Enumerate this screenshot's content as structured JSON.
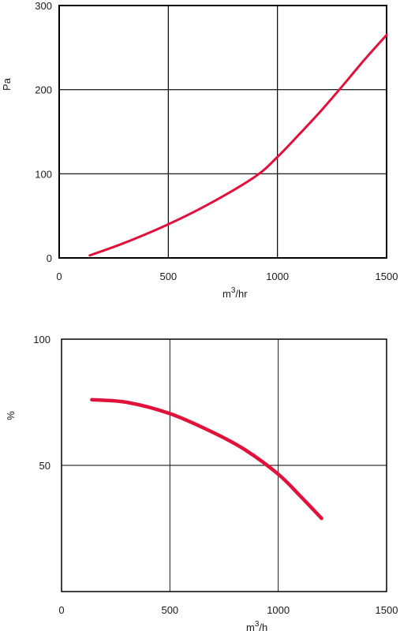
{
  "chart_data": [
    {
      "type": "line",
      "title": "",
      "xlabel": "m",
      "xlabel_sup": "3",
      "xlabel_suffix": "/hr",
      "ylabel": "Pa",
      "xlim": [
        0,
        1500
      ],
      "ylim": [
        0,
        300
      ],
      "xticks": [
        0,
        500,
        1000,
        1500
      ],
      "yticks": [
        0,
        100,
        200,
        300
      ],
      "xtick_labels": [
        "0",
        "500",
        "1000",
        "1500"
      ],
      "ytick_labels": [
        "0",
        "100",
        "200",
        "300"
      ],
      "grid": true,
      "series": [
        {
          "color": "#e0113a",
          "x": [
            140,
            300,
            500,
            700,
            900,
            1000,
            1100,
            1200,
            1300,
            1400,
            1500
          ],
          "y": [
            3,
            18,
            40,
            66,
            97,
            120,
            147,
            175,
            205,
            236,
            265
          ]
        }
      ]
    },
    {
      "type": "line",
      "title": "",
      "xlabel": "m",
      "xlabel_sup": "3",
      "xlabel_suffix": "/h",
      "ylabel": "%",
      "xlim": [
        0,
        1500
      ],
      "ylim": [
        0,
        100
      ],
      "xticks": [
        0,
        500,
        1000,
        1500
      ],
      "yticks": [
        50,
        100
      ],
      "xtick_labels": [
        "0",
        "500",
        "1000",
        "1500"
      ],
      "ytick_labels": [
        "50",
        "100"
      ],
      "grid": true,
      "series": [
        {
          "color": "#e0113a",
          "x": [
            140,
            300,
            500,
            700,
            850,
            1000,
            1100,
            1200
          ],
          "y": [
            76,
            75,
            70.5,
            63,
            56,
            46.5,
            38,
            29
          ]
        }
      ]
    }
  ]
}
